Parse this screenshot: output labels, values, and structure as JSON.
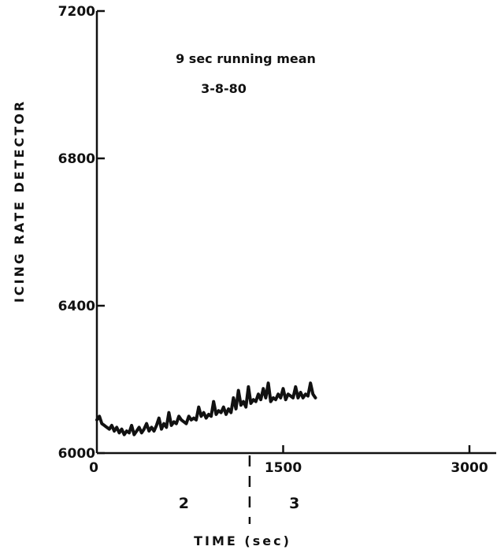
{
  "chart_data": {
    "type": "line",
    "xlabel": "TIME (sec)",
    "ylabel": "ICING RATE DETECTOR",
    "xlim": [
      0,
      3000
    ],
    "ylim": [
      6000,
      7200
    ],
    "x_ticks": [
      0,
      1500,
      3000
    ],
    "x_tick_labels": [
      "0",
      "1500",
      "3000"
    ],
    "y_ticks": [
      6000,
      6400,
      6800,
      7200
    ],
    "y_tick_labels": [
      "6000",
      "6400",
      "6800",
      "7200"
    ],
    "annotations": [
      "9 sec running mean",
      "3-8-80"
    ],
    "grid": false,
    "divider": {
      "x": 1230
    },
    "regions": [
      {
        "label": "2",
        "x": 700
      },
      {
        "label": "3",
        "x": 1590
      }
    ],
    "series": [
      {
        "color": "#111111",
        "x": [
          0,
          20,
          40,
          60,
          80,
          100,
          120,
          140,
          160,
          180,
          200,
          220,
          240,
          260,
          280,
          300,
          320,
          340,
          360,
          380,
          400,
          420,
          440,
          460,
          480,
          500,
          520,
          540,
          560,
          580,
          600,
          620,
          640,
          660,
          680,
          700,
          720,
          740,
          760,
          780,
          800,
          820,
          840,
          860,
          880,
          900,
          920,
          940,
          960,
          980,
          1000,
          1020,
          1040,
          1060,
          1080,
          1100,
          1120,
          1140,
          1160,
          1180,
          1200,
          1220,
          1240,
          1260,
          1280,
          1300,
          1320,
          1340,
          1360,
          1380,
          1400,
          1420,
          1440,
          1460,
          1480,
          1500,
          1520,
          1540,
          1560,
          1580,
          1600,
          1620,
          1640,
          1660,
          1680,
          1700,
          1720,
          1740,
          1760
        ],
        "y": [
          6090,
          6100,
          6080,
          6075,
          6070,
          6065,
          6075,
          6060,
          6070,
          6055,
          6065,
          6050,
          6060,
          6055,
          6075,
          6050,
          6060,
          6070,
          6055,
          6065,
          6080,
          6060,
          6070,
          6060,
          6075,
          6095,
          6065,
          6080,
          6070,
          6110,
          6075,
          6085,
          6080,
          6100,
          6090,
          6085,
          6080,
          6100,
          6090,
          6095,
          6090,
          6125,
          6100,
          6110,
          6095,
          6105,
          6100,
          6140,
          6105,
          6115,
          6110,
          6125,
          6105,
          6120,
          6110,
          6150,
          6120,
          6170,
          6130,
          6140,
          6125,
          6180,
          6135,
          6145,
          6140,
          6160,
          6145,
          6175,
          6150,
          6190,
          6140,
          6150,
          6145,
          6160,
          6150,
          6175,
          6145,
          6160,
          6155,
          6150,
          6180,
          6150,
          6165,
          6150,
          6160,
          6155,
          6190,
          6160,
          6150
        ]
      }
    ]
  }
}
